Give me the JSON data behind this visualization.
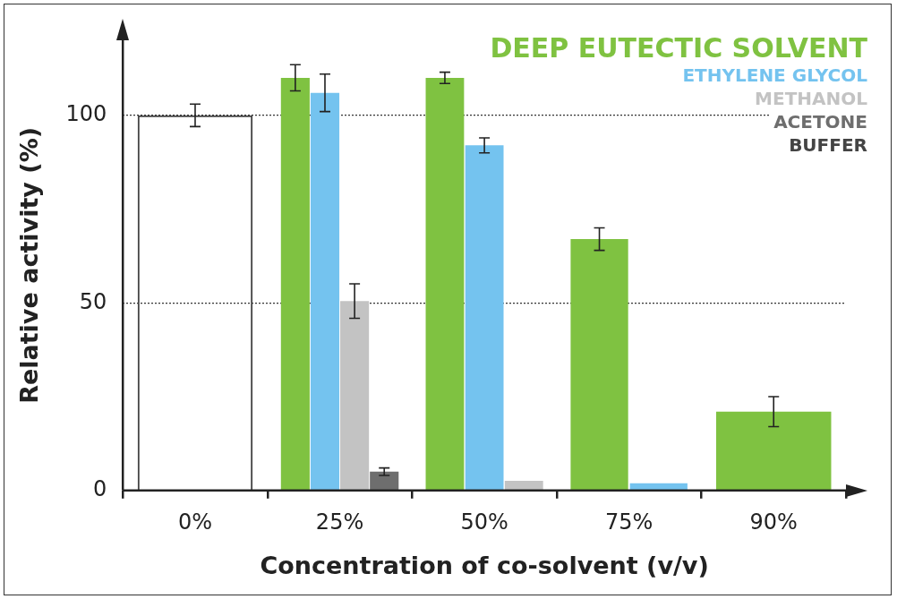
{
  "chart_data": {
    "type": "bar",
    "xlabel": "Concentration of co-solvent (v/v)",
    "ylabel": "Relative activity (%)",
    "categories": [
      "0%",
      "25%",
      "50%",
      "75%",
      "90%"
    ],
    "series": [
      {
        "name": "DEEP EUTECTIC SOLVENT",
        "color": "#7fc241",
        "values": [
          null,
          110,
          110,
          67,
          21
        ],
        "errors": [
          null,
          3.5,
          1.5,
          3,
          4
        ]
      },
      {
        "name": "ETHYLENE GLYCOL",
        "color": "#74c3ef",
        "values": [
          null,
          106,
          92,
          1.9,
          null
        ],
        "errors": [
          null,
          5,
          2,
          null,
          null
        ]
      },
      {
        "name": "METHANOL",
        "color": "#c3c3c3",
        "values": [
          null,
          50.5,
          2.6,
          null,
          null
        ],
        "errors": [
          null,
          4.6,
          null,
          null,
          null
        ]
      },
      {
        "name": "ACETONE",
        "color": "#6e6e6e",
        "values": [
          null,
          5,
          null,
          null,
          null
        ],
        "errors": [
          null,
          1,
          null,
          null,
          null
        ]
      },
      {
        "name": "BUFFER",
        "color": "#444444",
        "values": [
          100,
          null,
          null,
          null,
          null
        ],
        "errors": [
          3,
          null,
          null,
          null,
          null
        ]
      }
    ],
    "ylim": [
      0,
      120
    ],
    "yticks": [
      0,
      50,
      100
    ],
    "grid": "y",
    "legend": "top right"
  }
}
